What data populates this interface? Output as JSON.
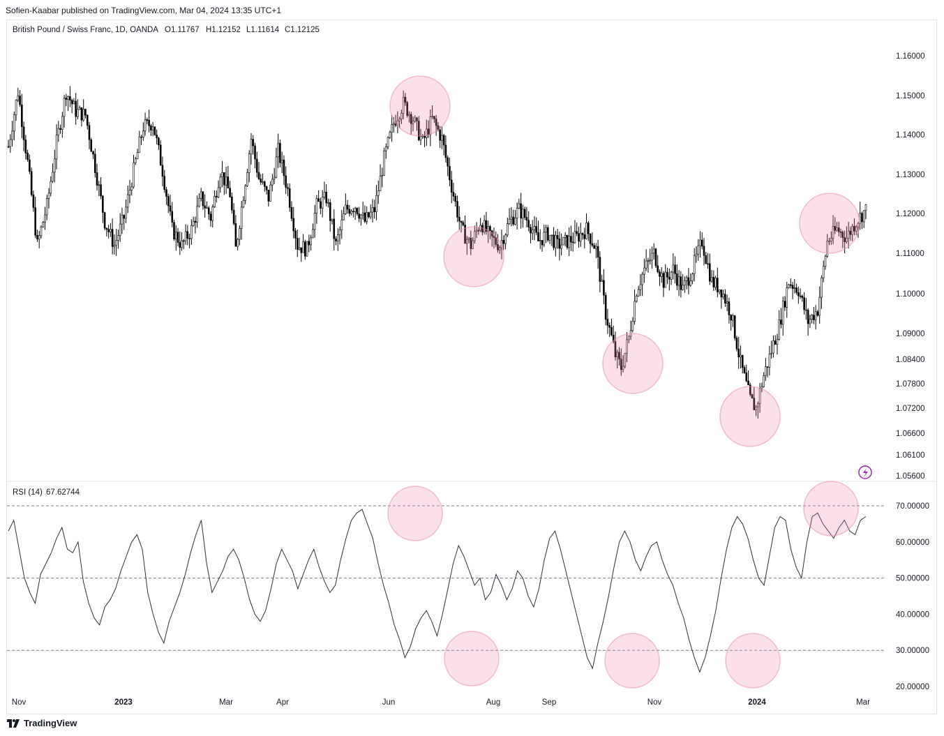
{
  "header": {
    "published_text": "Sofien-Kaabar published on TradingView.com, Mar 04, 2024 13:35 UTC+1"
  },
  "footer": {
    "brand": "TradingView",
    "logo_icon": "tradingview-logo-icon"
  },
  "chart_data": [
    {
      "type": "candlestick",
      "title": "British Pound / Swiss Franc, 1D, OANDA",
      "ohlc_legend": {
        "open": "O1.11767",
        "high": "H1.12152",
        "low": "L1.11614",
        "close": "C1.12125"
      },
      "y_ticks": [
        "1.16000",
        "1.15000",
        "1.14000",
        "1.13000",
        "1.12000",
        "1.11000",
        "1.10000",
        "1.09000",
        "1.08400",
        "1.07800",
        "1.07200",
        "1.06600",
        "1.06100",
        "1.05600"
      ],
      "ylim": [
        1.056,
        1.164
      ],
      "x_ticks": [
        "Nov",
        "2023",
        "Mar",
        "Apr",
        "Jun",
        "Aug",
        "Sep",
        "Nov",
        "2024",
        "Mar"
      ],
      "close_path": [
        [
          0,
          1.137
        ],
        [
          5,
          1.151
        ],
        [
          10,
          1.133
        ],
        [
          15,
          1.112
        ],
        [
          20,
          1.122
        ],
        [
          25,
          1.138
        ],
        [
          30,
          1.151
        ],
        [
          35,
          1.146
        ],
        [
          40,
          1.145
        ],
        [
          45,
          1.132
        ],
        [
          50,
          1.118
        ],
        [
          55,
          1.112
        ],
        [
          60,
          1.119
        ],
        [
          65,
          1.131
        ],
        [
          70,
          1.142
        ],
        [
          75,
          1.143
        ],
        [
          80,
          1.131
        ],
        [
          85,
          1.116
        ],
        [
          90,
          1.112
        ],
        [
          95,
          1.116
        ],
        [
          100,
          1.124
        ],
        [
          105,
          1.119
        ],
        [
          110,
          1.131
        ],
        [
          115,
          1.125
        ],
        [
          118,
          1.111
        ],
        [
          122,
          1.125
        ],
        [
          126,
          1.139
        ],
        [
          130,
          1.129
        ],
        [
          135,
          1.124
        ],
        [
          140,
          1.136
        ],
        [
          145,
          1.126
        ],
        [
          150,
          1.112
        ],
        [
          155,
          1.111
        ],
        [
          160,
          1.122
        ],
        [
          165,
          1.124
        ],
        [
          170,
          1.112
        ],
        [
          175,
          1.121
        ],
        [
          180,
          1.122
        ],
        [
          185,
          1.118
        ],
        [
          190,
          1.121
        ],
        [
          195,
          1.134
        ],
        [
          200,
          1.143
        ],
        [
          205,
          1.148
        ],
        [
          210,
          1.144
        ],
        [
          215,
          1.138
        ],
        [
          220,
          1.144
        ],
        [
          225,
          1.139
        ],
        [
          230,
          1.127
        ],
        [
          235,
          1.116
        ],
        [
          240,
          1.112
        ],
        [
          245,
          1.118
        ],
        [
          250,
          1.114
        ],
        [
          255,
          1.112
        ],
        [
          260,
          1.118
        ],
        [
          265,
          1.121
        ],
        [
          270,
          1.118
        ],
        [
          275,
          1.113
        ],
        [
          280,
          1.115
        ],
        [
          285,
          1.112
        ],
        [
          290,
          1.113
        ],
        [
          295,
          1.114
        ],
        [
          300,
          1.116
        ],
        [
          305,
          1.111
        ],
        [
          310,
          1.095
        ],
        [
          315,
          1.085
        ],
        [
          318,
          1.082
        ],
        [
          322,
          1.089
        ],
        [
          326,
          1.101
        ],
        [
          330,
          1.106
        ],
        [
          335,
          1.11
        ],
        [
          340,
          1.103
        ],
        [
          345,
          1.106
        ],
        [
          350,
          1.101
        ],
        [
          355,
          1.106
        ],
        [
          360,
          1.113
        ],
        [
          365,
          1.103
        ],
        [
          370,
          1.101
        ],
        [
          375,
          1.095
        ],
        [
          380,
          1.083
        ],
        [
          385,
          1.074
        ],
        [
          388,
          1.072
        ],
        [
          392,
          1.08
        ],
        [
          396,
          1.086
        ],
        [
          400,
          1.092
        ],
        [
          405,
          1.103
        ],
        [
          410,
          1.101
        ],
        [
          415,
          1.093
        ],
        [
          420,
          1.096
        ],
        [
          425,
          1.113
        ],
        [
          430,
          1.116
        ],
        [
          435,
          1.114
        ],
        [
          440,
          1.118
        ],
        [
          445,
          1.121
        ]
      ],
      "highlight_icon": "flash-icon"
    },
    {
      "type": "line",
      "title": "RSI (14)",
      "last_value": "67.62744",
      "y_ticks": [
        "70.00000",
        "60.00000",
        "50.00000",
        "40.00000",
        "30.00000",
        "20.00000"
      ],
      "ylim": [
        17.5,
        77.5
      ],
      "reference_lines": [
        70,
        50,
        30
      ],
      "values": [
        63,
        66,
        58,
        50,
        46,
        43,
        51,
        54,
        57,
        61,
        64,
        58,
        57,
        60,
        49,
        43,
        39,
        37,
        42,
        44,
        47,
        52,
        56,
        60,
        62,
        58,
        46,
        40,
        35,
        32,
        38,
        42,
        46,
        51,
        57,
        62,
        66,
        54,
        46,
        49,
        52,
        56,
        58,
        55,
        50,
        44,
        40,
        38,
        41,
        47,
        54,
        58,
        55,
        52,
        47,
        51,
        55,
        58,
        53,
        49,
        46,
        48,
        55,
        61,
        66,
        68,
        69,
        65,
        61,
        54,
        48,
        43,
        37,
        33,
        28,
        31,
        36,
        39,
        41,
        38,
        34,
        40,
        47,
        54,
        59,
        56,
        52,
        48,
        50,
        44,
        46,
        51,
        48,
        44,
        47,
        52,
        50,
        45,
        42,
        47,
        55,
        61,
        63,
        58,
        52,
        46,
        40,
        34,
        28,
        25,
        32,
        38,
        45,
        53,
        60,
        63,
        60,
        55,
        52,
        56,
        59,
        60,
        55,
        51,
        48,
        43,
        39,
        33,
        28,
        24,
        28,
        34,
        41,
        50,
        58,
        64,
        67,
        65,
        61,
        55,
        50,
        48,
        56,
        64,
        67,
        66,
        58,
        53,
        50,
        60,
        67,
        68,
        65,
        63,
        61,
        64,
        66,
        63,
        62,
        66,
        67
      ],
      "circled_marker_icon": "highlight-circle-icon"
    }
  ]
}
